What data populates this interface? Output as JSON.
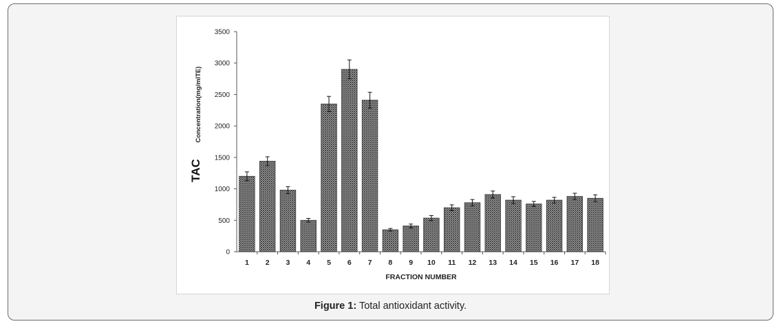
{
  "caption": {
    "label": "Figure 1:",
    "text": "Total antioxidant activity."
  },
  "chart_data": {
    "type": "bar",
    "title": "",
    "xlabel": "FRACTION NUMBER",
    "ylabel_main": "TAC",
    "ylabel_sub": "Concentration(mg/mlTE)",
    "ylim": [
      0,
      3500
    ],
    "yticks": [
      0,
      500,
      1000,
      1500,
      2000,
      2500,
      3000,
      3500
    ],
    "categories": [
      "1",
      "2",
      "3",
      "4",
      "5",
      "6",
      "7",
      "8",
      "9",
      "10",
      "11",
      "12",
      "13",
      "14",
      "15",
      "16",
      "17",
      "18"
    ],
    "values": [
      1200,
      1440,
      980,
      500,
      2350,
      2900,
      2410,
      350,
      410,
      535,
      700,
      780,
      910,
      820,
      760,
      820,
      880,
      850
    ],
    "errors": [
      70,
      70,
      55,
      30,
      120,
      150,
      125,
      20,
      30,
      40,
      45,
      50,
      55,
      55,
      40,
      45,
      50,
      55
    ],
    "bar_pattern": "crosshatch",
    "bar_color": "#3a3a3a",
    "grid": false,
    "legend": "none"
  }
}
